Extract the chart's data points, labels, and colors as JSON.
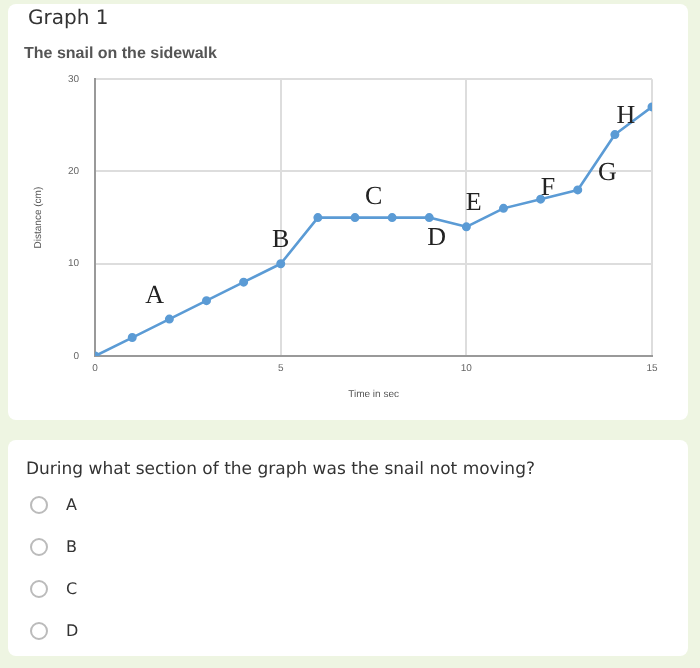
{
  "chart_data": {
    "type": "line",
    "title": "The snail on the sidewalk",
    "xlabel": "Time in sec",
    "ylabel": "Distance (cm)",
    "x": [
      0,
      1,
      2,
      3,
      4,
      5,
      6,
      7,
      8,
      9,
      10,
      11,
      12,
      13,
      14,
      15
    ],
    "values": [
      0,
      2,
      4,
      6,
      8,
      10,
      15,
      15,
      15,
      15,
      14,
      16,
      17,
      18,
      24,
      27
    ],
    "color": "#5b9bd5",
    "xlim": [
      0,
      15
    ],
    "xticks": [
      0,
      5,
      10,
      15
    ],
    "ylim": [
      0,
      30
    ],
    "yticks": [
      0,
      10,
      20,
      30
    ],
    "grid": true,
    "legend": false,
    "marker": "circle",
    "line_style": "solid",
    "annotations": [
      "Graph 1",
      "During what section of the graph was the snail not moving?",
      "A",
      "B",
      "C",
      "D",
      "A",
      "B",
      "C",
      "D",
      "E",
      "F",
      "G",
      "H"
    ]
  }
}
